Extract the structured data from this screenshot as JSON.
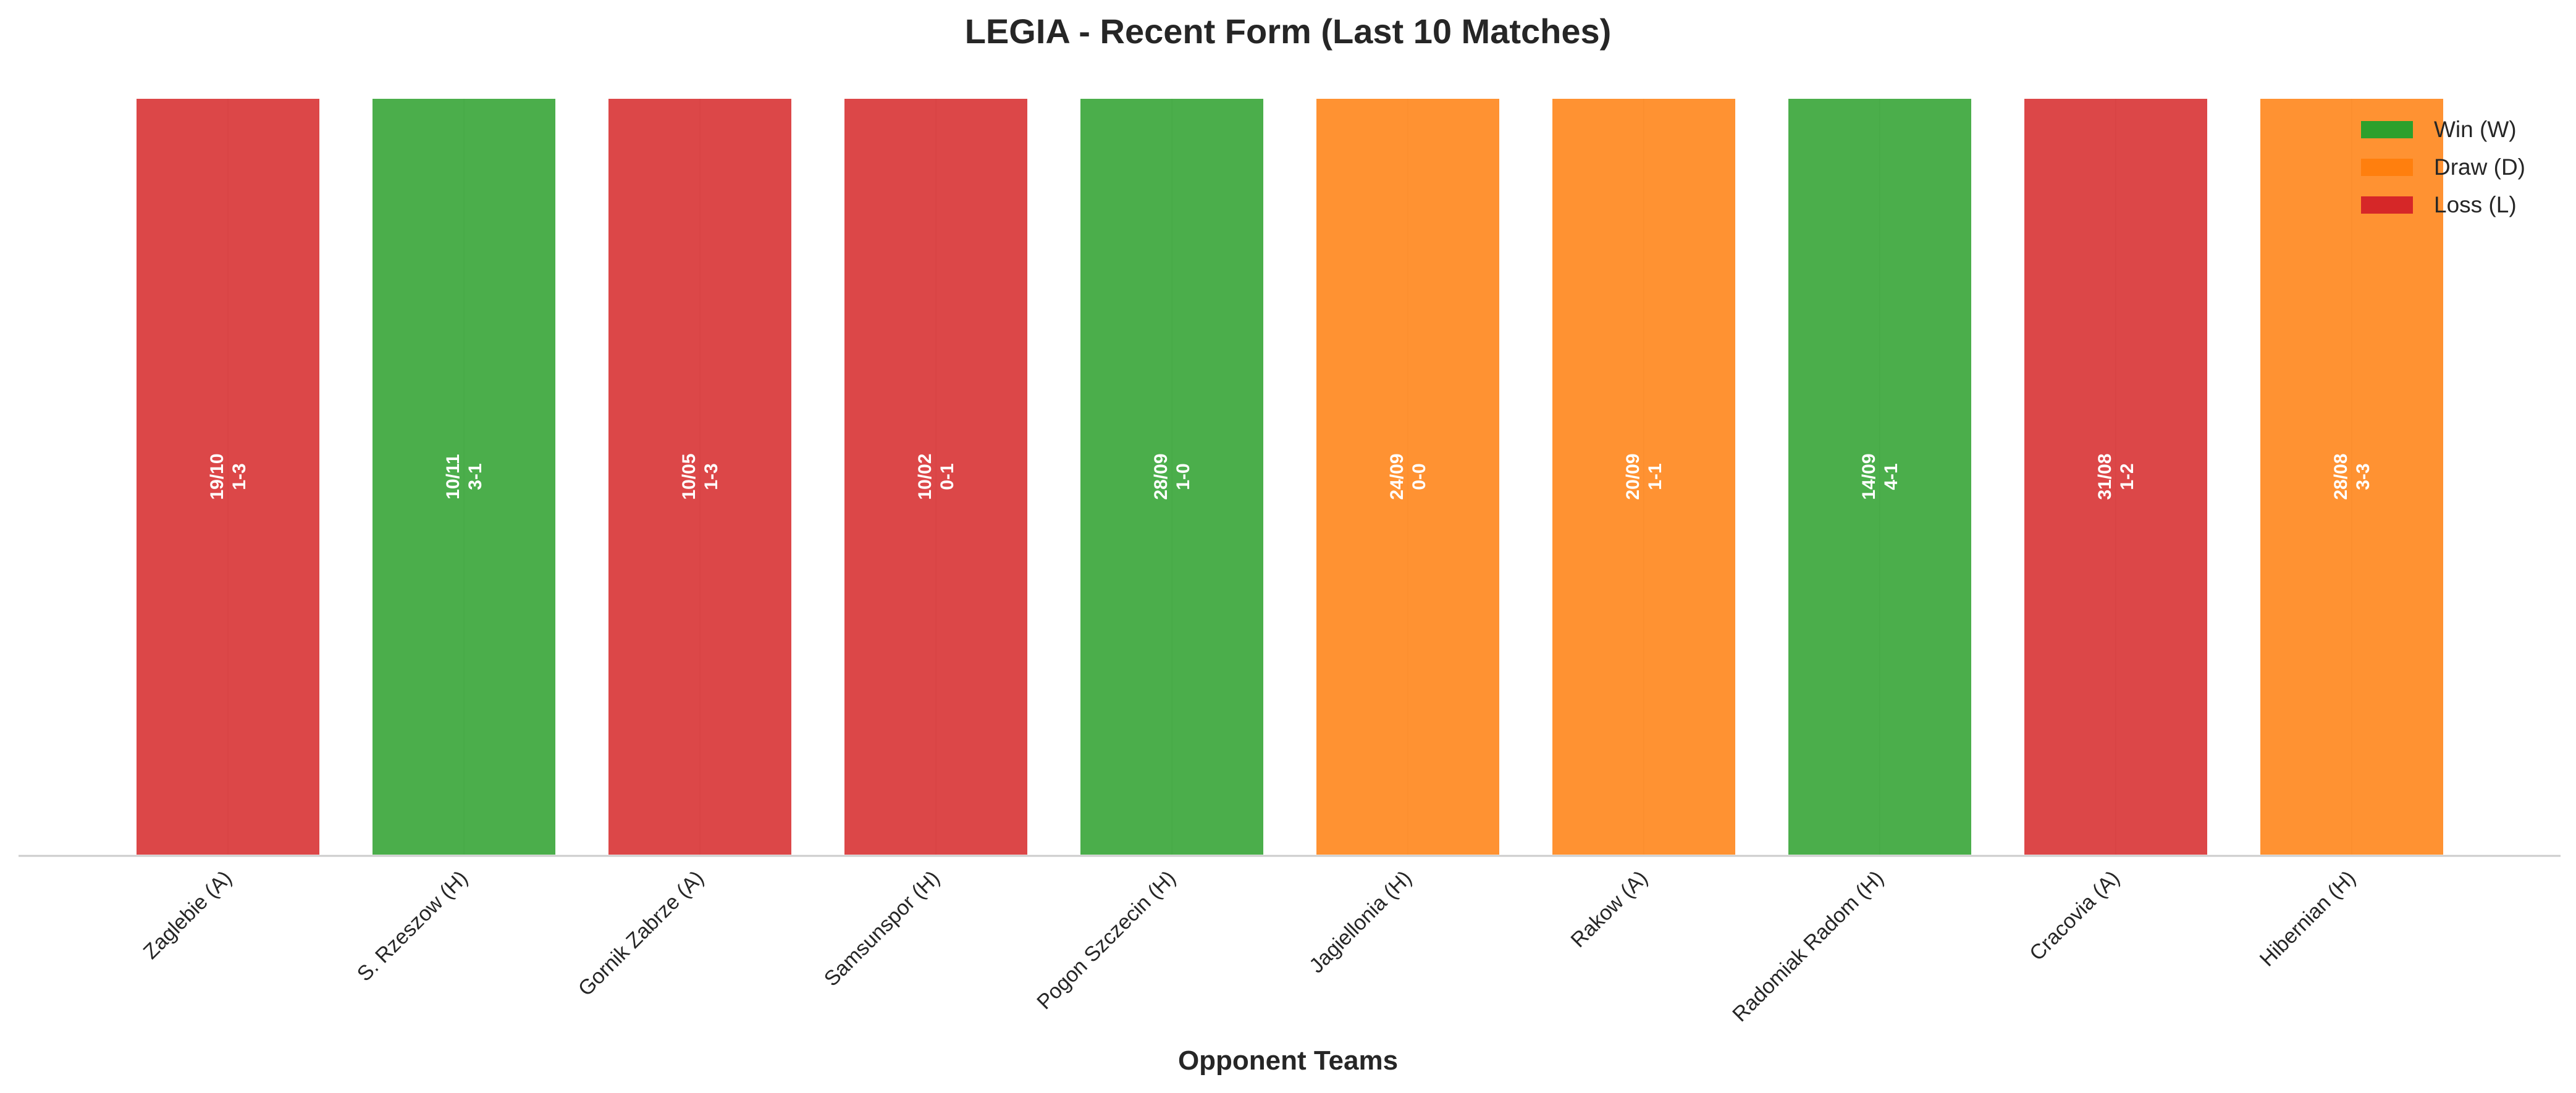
{
  "chart_data": {
    "type": "bar",
    "title": "LEGIA - Recent Form (Last 10 Matches)",
    "xlabel": "Opponent Teams",
    "ylabel": "",
    "categories": [
      "Zaglebie (A)",
      "S. Rzeszow (H)",
      "Gornik Zabrze (A)",
      "Samsunspor (H)",
      "Pogon Szczecin (H)",
      "Jagiellonia (H)",
      "Rakow (A)",
      "Radomiak Radom (H)",
      "Cracovia (A)",
      "Hibernian (H)"
    ],
    "values": [
      1,
      1,
      1,
      1,
      1,
      1,
      1,
      1,
      1,
      1
    ],
    "results": [
      "L",
      "W",
      "L",
      "L",
      "W",
      "D",
      "D",
      "W",
      "L",
      "D"
    ],
    "dates": [
      "19/10",
      "10/11",
      "10/05",
      "10/02",
      "28/09",
      "24/09",
      "20/09",
      "14/09",
      "31/08",
      "28/08"
    ],
    "scores": [
      "1-3",
      "3-1",
      "1-3",
      "0-1",
      "1-0",
      "0-0",
      "1-1",
      "4-1",
      "1-2",
      "3-3"
    ],
    "ylim": [
      0,
      1
    ],
    "grid": true,
    "legend_position": "top-right",
    "legend": [
      {
        "key": "W",
        "label": "Win (W)",
        "color": "#2ca02c"
      },
      {
        "key": "D",
        "label": "Draw (D)",
        "color": "#ff7f0e"
      },
      {
        "key": "L",
        "label": "Loss (L)",
        "color": "#d62728"
      }
    ]
  }
}
